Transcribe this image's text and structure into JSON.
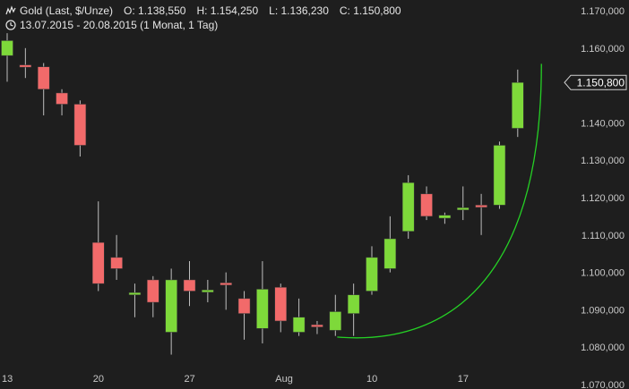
{
  "header": {
    "symbol": "Gold (Last, $/Unze)",
    "open": "O: 1.138,550",
    "high": "H: 1.154,250",
    "low": "L: 1.136,230",
    "close": "C: 1.150,800",
    "range": "13.07.2015 - 20.08.2015 (1 Monat, 1 Tag)",
    "chart_icon": "chart-icon",
    "clock_icon": "clock-icon"
  },
  "colors": {
    "background": "#1e1e1e",
    "up": "#7ed93a",
    "down": "#f26a6a",
    "wick": "#bfbfbf",
    "curve": "#25d025",
    "text": "#c8c8c8",
    "marker_bg": "#1e1e1e"
  },
  "chart_data": {
    "type": "candlestick",
    "title": "Gold (Last, $/Unze)",
    "ylim": [
      1070000,
      1170000
    ],
    "y_ticks": [
      1070000,
      1080000,
      1090000,
      1100000,
      1110000,
      1120000,
      1130000,
      1140000,
      1150000,
      1160000,
      1170000
    ],
    "y_tick_labels": [
      "1.070,000",
      "1.080,000",
      "1.090,000",
      "1.100,000",
      "1.110,000",
      "1.120,000",
      "1.130,000",
      "1.140,000",
      "1.150,000",
      "1.160,000",
      "1.170,000"
    ],
    "x_ticks": [
      {
        "index": 0,
        "label": "13"
      },
      {
        "index": 5,
        "label": "20"
      },
      {
        "index": 10,
        "label": "27"
      },
      {
        "index": 15,
        "label": "Aug"
      },
      {
        "index": 20,
        "label": "10"
      },
      {
        "index": 25,
        "label": "17"
      }
    ],
    "candles": [
      {
        "date": "13.07.2015",
        "o": 1158000,
        "h": 1164000,
        "l": 1151000,
        "c": 1162000
      },
      {
        "date": "14.07.2015",
        "o": 1155500,
        "h": 1160000,
        "l": 1152000,
        "c": 1155200
      },
      {
        "date": "15.07.2015",
        "o": 1155000,
        "h": 1156000,
        "l": 1142000,
        "c": 1149000
      },
      {
        "date": "16.07.2015",
        "o": 1148000,
        "h": 1149000,
        "l": 1142000,
        "c": 1145000
      },
      {
        "date": "17.07.2015",
        "o": 1145000,
        "h": 1146000,
        "l": 1131000,
        "c": 1134000
      },
      {
        "date": "20.07.2015",
        "o": 1108000,
        "h": 1119000,
        "l": 1095000,
        "c": 1097000
      },
      {
        "date": "21.07.2015",
        "o": 1104000,
        "h": 1110000,
        "l": 1098000,
        "c": 1101000
      },
      {
        "date": "22.07.2015",
        "o": 1094000,
        "h": 1097000,
        "l": 1088000,
        "c": 1094600
      },
      {
        "date": "23.07.2015",
        "o": 1098000,
        "h": 1099000,
        "l": 1088000,
        "c": 1092000
      },
      {
        "date": "24.07.2015",
        "o": 1084000,
        "h": 1101000,
        "l": 1078000,
        "c": 1098000
      },
      {
        "date": "27.07.2015",
        "o": 1098000,
        "h": 1103000,
        "l": 1091000,
        "c": 1095000
      },
      {
        "date": "28.07.2015",
        "o": 1095000,
        "h": 1098000,
        "l": 1092000,
        "c": 1095300
      },
      {
        "date": "29.07.2015",
        "o": 1097200,
        "h": 1100000,
        "l": 1090000,
        "c": 1097000
      },
      {
        "date": "30.07.2015",
        "o": 1093000,
        "h": 1095000,
        "l": 1082000,
        "c": 1089000
      },
      {
        "date": "31.07.2015",
        "o": 1085000,
        "h": 1103000,
        "l": 1081000,
        "c": 1095500
      },
      {
        "date": "03.08.2015",
        "o": 1096000,
        "h": 1097000,
        "l": 1084000,
        "c": 1087000
      },
      {
        "date": "04.08.2015",
        "o": 1084000,
        "h": 1093000,
        "l": 1083000,
        "c": 1088000
      },
      {
        "date": "05.08.2015",
        "o": 1086000,
        "h": 1087000,
        "l": 1083500,
        "c": 1085500
      },
      {
        "date": "06.08.2015",
        "o": 1084500,
        "h": 1094000,
        "l": 1083000,
        "c": 1089500
      },
      {
        "date": "07.08.2015",
        "o": 1089000,
        "h": 1097000,
        "l": 1083000,
        "c": 1094000
      },
      {
        "date": "10.08.2015",
        "o": 1095000,
        "h": 1107000,
        "l": 1094000,
        "c": 1104000
      },
      {
        "date": "11.08.2015",
        "o": 1101000,
        "h": 1115000,
        "l": 1100000,
        "c": 1109000
      },
      {
        "date": "12.08.2015",
        "o": 1111000,
        "h": 1126000,
        "l": 1109000,
        "c": 1124000
      },
      {
        "date": "13.08.2015",
        "o": 1121000,
        "h": 1123000,
        "l": 1114000,
        "c": 1115000
      },
      {
        "date": "14.08.2015",
        "o": 1114500,
        "h": 1116000,
        "l": 1113000,
        "c": 1115300
      },
      {
        "date": "17.08.2015",
        "o": 1116800,
        "h": 1123000,
        "l": 1114000,
        "c": 1117300
      },
      {
        "date": "18.08.2015",
        "o": 1118000,
        "h": 1121000,
        "l": 1110000,
        "c": 1117500
      },
      {
        "date": "19.08.2015",
        "o": 1118000,
        "h": 1135000,
        "l": 1117000,
        "c": 1134000
      },
      {
        "date": "20.08.2015",
        "o": 1138550,
        "h": 1154250,
        "l": 1136230,
        "c": 1150800
      }
    ],
    "last_value": 1150800,
    "last_label": "1.150,800",
    "annotation": {
      "type": "curve",
      "from_index": 18.1,
      "to_index": 29.3
    }
  }
}
